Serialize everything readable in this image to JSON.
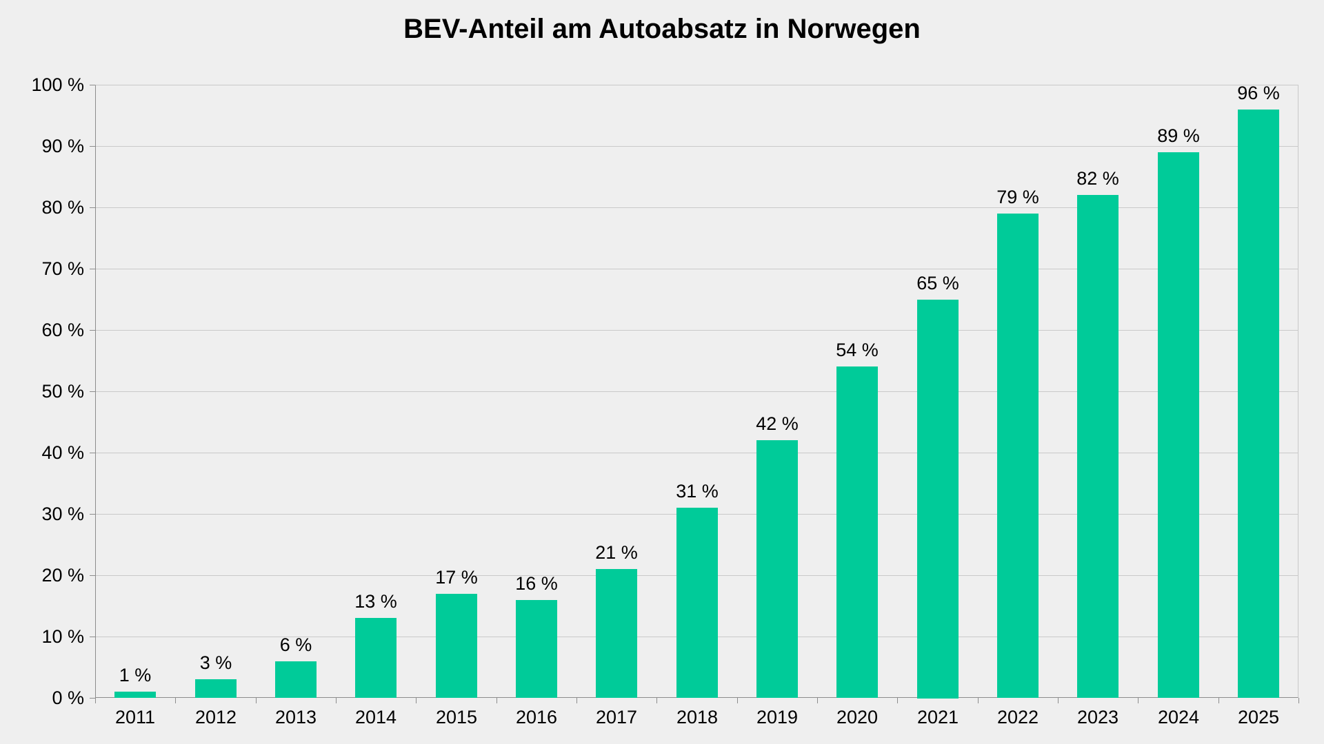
{
  "chart_data": {
    "type": "bar",
    "title": "BEV-Anteil am Autoabsatz in Norwegen",
    "categories": [
      "2011",
      "2012",
      "2013",
      "2014",
      "2015",
      "2016",
      "2017",
      "2018",
      "2019",
      "2020",
      "2021",
      "2022",
      "2023",
      "2024",
      "2025"
    ],
    "values": [
      1,
      3,
      6,
      13,
      17,
      16,
      21,
      31,
      42,
      54,
      65,
      79,
      82,
      89,
      96
    ],
    "value_label_suffix": " %",
    "ytick_labels": [
      "0 %",
      "10 %",
      "20 %",
      "30 %",
      "40 %",
      "50 %",
      "60 %",
      "70 %",
      "80 %",
      "90 %",
      "100 %"
    ],
    "ytick_values": [
      0,
      10,
      20,
      30,
      40,
      50,
      60,
      70,
      80,
      90,
      100
    ],
    "xlabel": "",
    "ylabel": "",
    "ylim": [
      0,
      100
    ],
    "grid": true,
    "legend": false,
    "colors": {
      "bar": "#00cb99",
      "background": "#efefef",
      "gridline": "#c9c9c9",
      "axis": "#8c8c8c",
      "text": "#000000"
    }
  }
}
